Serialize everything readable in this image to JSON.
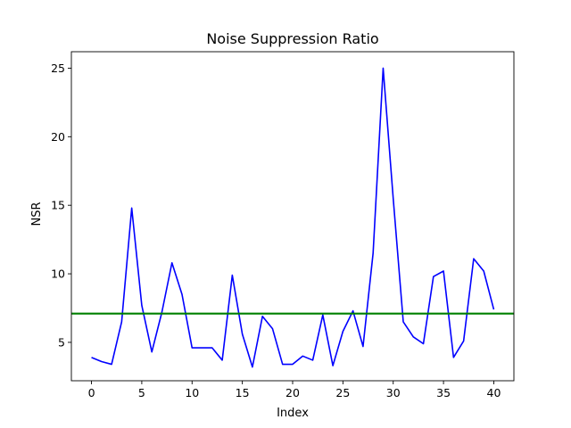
{
  "chart_data": {
    "type": "line",
    "title": "Noise Suppression Ratio",
    "xlabel": "Index",
    "ylabel": "NSR",
    "xlim": [
      -2,
      42
    ],
    "ylim": [
      2.2,
      26.2
    ],
    "xticks": [
      0,
      5,
      10,
      15,
      20,
      25,
      30,
      35,
      40
    ],
    "yticks": [
      5,
      10,
      15,
      20,
      25
    ],
    "grid": false,
    "series": [
      {
        "color": "#0000ff",
        "x": [
          0,
          1,
          2,
          3,
          4,
          5,
          6,
          7,
          8,
          9,
          10,
          11,
          12,
          13,
          14,
          15,
          16,
          17,
          18,
          19,
          20,
          21,
          22,
          23,
          24,
          25,
          26,
          27,
          28,
          29,
          30,
          31,
          32,
          33,
          34,
          35,
          36,
          37,
          38,
          39,
          40
        ],
        "values": [
          3.9,
          3.6,
          3.4,
          6.5,
          14.8,
          7.7,
          4.3,
          7.2,
          10.8,
          8.5,
          4.6,
          4.6,
          4.6,
          3.7,
          9.9,
          5.6,
          3.2,
          6.9,
          6.0,
          3.4,
          3.4,
          4.0,
          3.7,
          7.0,
          3.3,
          5.8,
          7.3,
          4.7,
          11.5,
          25.0,
          15.5,
          6.5,
          5.4,
          4.9,
          9.8,
          10.2,
          3.9,
          5.1,
          11.1,
          10.2,
          7.4
        ]
      }
    ],
    "reference_line": {
      "y": 7.1,
      "color": "#008000"
    }
  }
}
